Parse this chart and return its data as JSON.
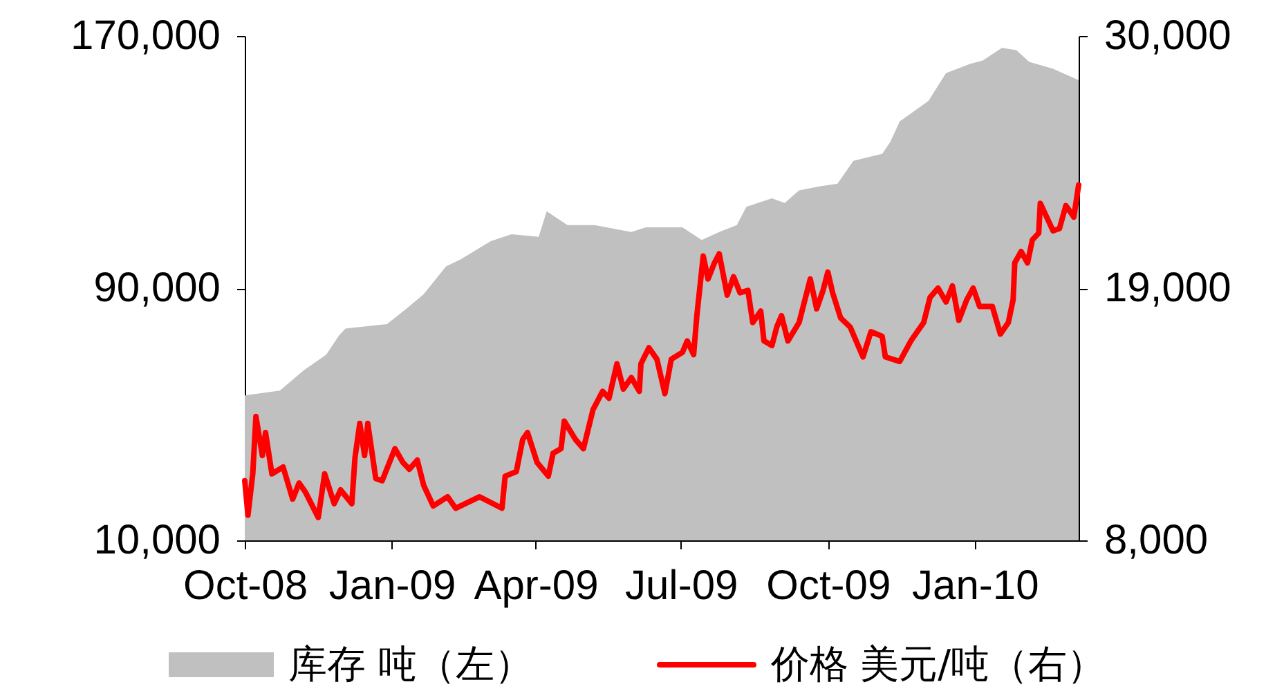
{
  "chart_data": {
    "type": "area",
    "xlim": [
      "2008-10-01",
      "2010-03-07"
    ],
    "xticks": [
      {
        "value": "2008-10-01",
        "label": "Oct-08"
      },
      {
        "value": "2009-01-01",
        "label": "Jan-09"
      },
      {
        "value": "2009-04-01",
        "label": "Apr-09"
      },
      {
        "value": "2009-07-01",
        "label": "Jul-09"
      },
      {
        "value": "2009-10-01",
        "label": "Oct-09"
      },
      {
        "value": "2010-01-01",
        "label": "Jan-10"
      }
    ],
    "ylim": [
      10000,
      170000
    ],
    "yticks": [
      {
        "value": 10000,
        "label": "10,000"
      },
      {
        "value": 90000,
        "label": "90,000"
      },
      {
        "value": 170000,
        "label": "170,000"
      }
    ],
    "y2lim": [
      8000,
      30000
    ],
    "y2ticks": [
      {
        "value": 8000,
        "label": "8,000"
      },
      {
        "value": 19000,
        "label": "19,000"
      },
      {
        "value": 30000,
        "label": "30,000"
      }
    ],
    "grid": false,
    "legend": "bottom",
    "series": [
      {
        "name": "库存 吨（左）",
        "color": "#c0c0c0",
        "x": [
          "2008-10-01",
          "2008-10-23",
          "2008-11-07",
          "2008-11-21",
          "2008-11-29",
          "2008-12-03",
          "2008-12-29",
          "2009-01-09",
          "2009-01-21",
          "2009-02-04",
          "2009-02-13",
          "2009-03-04",
          "2009-03-17",
          "2009-04-03",
          "2009-04-08",
          "2009-04-21",
          "2009-05-08",
          "2009-05-31",
          "2009-06-09",
          "2009-06-21",
          "2009-07-02",
          "2009-07-14",
          "2009-07-25",
          "2009-08-05",
          "2009-08-11",
          "2009-08-27",
          "2009-09-04",
          "2009-09-13",
          "2009-09-27",
          "2009-10-07",
          "2009-10-17",
          "2009-11-04",
          "2009-11-09",
          "2009-11-15",
          "2009-12-03",
          "2009-12-14",
          "2009-12-29",
          "2010-01-06",
          "2010-01-18",
          "2010-01-27",
          "2010-02-04",
          "2010-02-19",
          "2010-03-07"
        ],
        "values": [
          56000,
          57500,
          64000,
          68900,
          75000,
          77200,
          78600,
          83000,
          88100,
          96900,
          99100,
          104900,
          107100,
          106300,
          114400,
          110000,
          110000,
          107800,
          109300,
          109300,
          109300,
          105300,
          107800,
          110000,
          115800,
          118500,
          117000,
          121000,
          122400,
          123100,
          130400,
          132600,
          136300,
          142900,
          149400,
          158200,
          161100,
          162200,
          166200,
          165500,
          161800,
          159600,
          156000
        ]
      },
      {
        "name": "价格 美元/吨（右）",
        "type": "line",
        "axis": "y2",
        "color": "#ff0000",
        "x": [
          "2008-10-01",
          "2008-10-03",
          "2008-10-06",
          "2008-10-08",
          "2008-10-12",
          "2008-10-14",
          "2008-10-18",
          "2008-10-25",
          "2008-10-31",
          "2008-11-04",
          "2008-11-08",
          "2008-11-16",
          "2008-11-20",
          "2008-11-26",
          "2008-11-30",
          "2008-12-07",
          "2008-12-09",
          "2008-12-12",
          "2008-12-15",
          "2008-12-17",
          "2008-12-22",
          "2008-12-26",
          "2009-01-03",
          "2009-01-08",
          "2009-01-12",
          "2009-01-17",
          "2009-01-21",
          "2009-01-27",
          "2009-02-05",
          "2009-02-10",
          "2009-02-25",
          "2009-03-11",
          "2009-03-13",
          "2009-03-20",
          "2009-03-24",
          "2009-03-27",
          "2009-04-02",
          "2009-04-09",
          "2009-04-12",
          "2009-04-17",
          "2009-04-19",
          "2009-04-26",
          "2009-05-01",
          "2009-05-07",
          "2009-05-13",
          "2009-05-17",
          "2009-05-22",
          "2009-05-26",
          "2009-05-31",
          "2009-06-05",
          "2009-06-06",
          "2009-06-11",
          "2009-06-16",
          "2009-06-21",
          "2009-06-25",
          "2009-07-02",
          "2009-07-05",
          "2009-07-09",
          "2009-07-11",
          "2009-07-15",
          "2009-07-18",
          "2009-07-22",
          "2009-07-25",
          "2009-07-30",
          "2009-08-03",
          "2009-08-07",
          "2009-08-12",
          "2009-08-15",
          "2009-08-20",
          "2009-08-22",
          "2009-08-27",
          "2009-08-30",
          "2009-09-02",
          "2009-09-06",
          "2009-09-13",
          "2009-09-20",
          "2009-09-24",
          "2009-09-28",
          "2009-10-01",
          "2009-10-04",
          "2009-10-09",
          "2009-10-15",
          "2009-10-23",
          "2009-10-28",
          "2009-11-04",
          "2009-11-06",
          "2009-11-15",
          "2009-11-22",
          "2009-11-30",
          "2009-12-04",
          "2009-12-09",
          "2009-12-14",
          "2009-12-18",
          "2009-12-22",
          "2009-12-27",
          "2009-12-31",
          "2010-01-04",
          "2010-01-12",
          "2010-01-17",
          "2010-01-22",
          "2010-01-25",
          "2010-01-26",
          "2010-01-30",
          "2010-02-03",
          "2010-02-06",
          "2010-02-10",
          "2010-02-11",
          "2010-02-15",
          "2010-02-19",
          "2010-02-23",
          "2010-02-27",
          "2010-03-04",
          "2010-03-07"
        ],
        "values": [
          10600,
          9100,
          10900,
          13400,
          11700,
          12700,
          10900,
          11200,
          9800,
          10500,
          10100,
          9000,
          10900,
          9600,
          10200,
          9600,
          11600,
          13100,
          11700,
          13100,
          10700,
          10600,
          12000,
          11400,
          11100,
          11500,
          10400,
          9500,
          9900,
          9400,
          9900,
          9400,
          10800,
          11000,
          12400,
          12700,
          11400,
          10800,
          11800,
          12000,
          13200,
          12400,
          12000,
          13700,
          14500,
          14200,
          15700,
          14600,
          15100,
          14500,
          15700,
          16400,
          15900,
          14400,
          15900,
          16200,
          16700,
          16100,
          17800,
          20400,
          19400,
          20100,
          20500,
          18700,
          19500,
          18800,
          18900,
          17500,
          18000,
          16700,
          16500,
          17300,
          17800,
          16700,
          17500,
          19400,
          18100,
          18900,
          19700,
          18800,
          17700,
          17300,
          16000,
          17100,
          16900,
          16000,
          15800,
          16700,
          17500,
          18600,
          19000,
          18400,
          19100,
          17600,
          18500,
          19000,
          18200,
          18200,
          17000,
          17500,
          18500,
          20100,
          20600,
          20100,
          21100,
          21400,
          22700,
          22100,
          21500,
          21600,
          22600,
          22100,
          23500
        ]
      }
    ]
  }
}
